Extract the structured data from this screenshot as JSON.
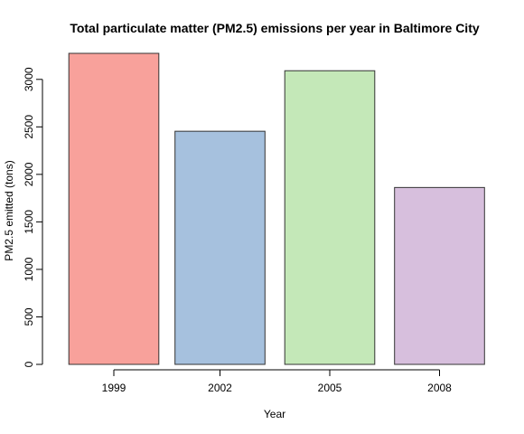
{
  "chart_data": {
    "type": "bar",
    "title": "Total particulate matter (PM2.5) emissions per year in Baltimore City",
    "xlabel": "Year",
    "ylabel": "PM2.5 emitted (tons)",
    "categories": [
      "1999",
      "2002",
      "2005",
      "2008"
    ],
    "values": [
      3274,
      2454,
      3091,
      1862
    ],
    "colors": [
      "#F8A19B",
      "#A6C1DE",
      "#C4E8B8",
      "#D7BFDD"
    ],
    "yticks": [
      0,
      500,
      1000,
      1500,
      2000,
      2500,
      3000
    ],
    "ylim": [
      0,
      3274
    ],
    "grid": false,
    "legend": "none"
  }
}
